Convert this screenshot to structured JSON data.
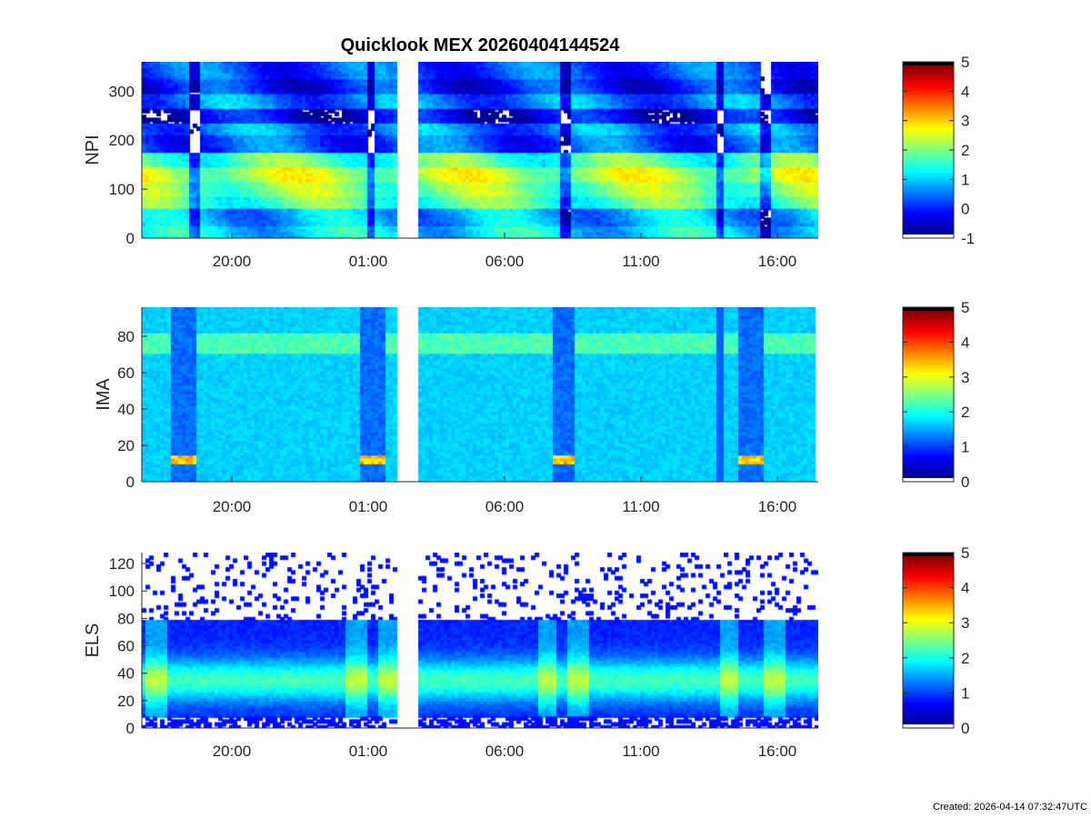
{
  "chart_data": {
    "type": "heatmap",
    "title": "Quicklook MEX 20260404144524",
    "x_tick_labels": [
      "20:00",
      "01:00",
      "06:00",
      "11:00",
      "16:00"
    ],
    "data_gap": "between about 01:30 and 02:10",
    "panels": [
      {
        "name": "npi",
        "ylabel": "NPI",
        "yticks": [
          0,
          100,
          200,
          300
        ],
        "ylim": [
          0,
          360
        ],
        "colorbar": {
          "ticks": [
            -1,
            0,
            1,
            2,
            3,
            4,
            5
          ],
          "range": [
            -1,
            5
          ]
        },
        "colormap": "jet"
      },
      {
        "name": "ima",
        "ylabel": "IMA",
        "yticks": [
          0,
          20,
          40,
          60,
          80
        ],
        "ylim": [
          0,
          96
        ],
        "colorbar": {
          "ticks": [
            0,
            1,
            2,
            3,
            4,
            5
          ],
          "range": [
            0,
            5
          ]
        },
        "colormap": "jet"
      },
      {
        "name": "els",
        "ylabel": "ELS",
        "yticks": [
          0,
          20,
          40,
          60,
          80,
          100,
          120
        ],
        "ylim": [
          0,
          128
        ],
        "colorbar": {
          "ticks": [
            0,
            1,
            2,
            3,
            4,
            5
          ],
          "range": [
            0,
            5
          ]
        },
        "colormap": "jet"
      }
    ]
  },
  "footer": "Created: 2026-04-14 07:32:47UTC"
}
